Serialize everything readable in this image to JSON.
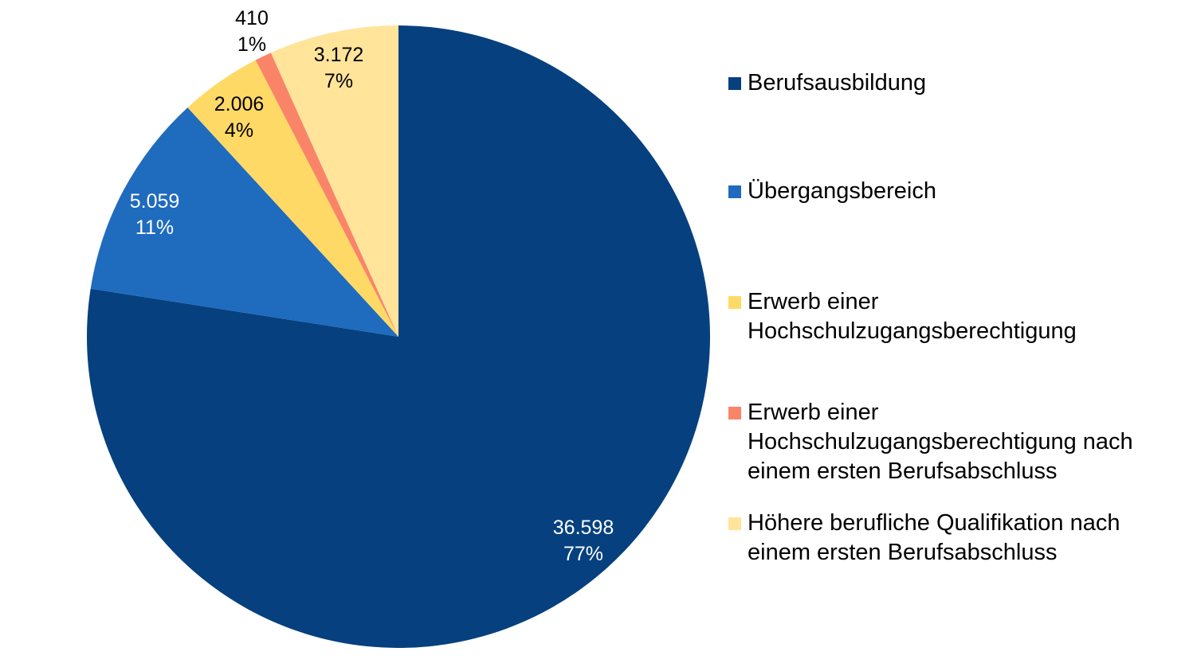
{
  "chart_data": {
    "type": "pie",
    "title": "",
    "start_angle": "top, clockwise",
    "legend_position": "right",
    "slices": [
      {
        "name": "Berufsausbildung",
        "value": 36598,
        "value_label": "36.598",
        "percent_label": "77%",
        "color": "#06407F",
        "label_color": "#FFFFFF"
      },
      {
        "name": "Übergangsbereich",
        "value": 5059,
        "value_label": "5.059",
        "percent_label": "11%",
        "color": "#1F6BBE",
        "label_color": "#FFFFFF"
      },
      {
        "name": "Erwerb einer Hochschulzugangsberechtigung",
        "value": 2006,
        "value_label": "2.006",
        "percent_label": "4%",
        "color": "#FFD966",
        "label_color": "#000000"
      },
      {
        "name": "Erwerb einer Hochschulzugangsberechtigung nach einem ersten Berufsabschluss",
        "value": 410,
        "value_label": "410",
        "percent_label": "1%",
        "color": "#FA8468",
        "label_color": "#000000"
      },
      {
        "name": "Höhere berufliche Qualifikation nach einem ersten Berufsabschluss",
        "value": 3172,
        "value_label": "3.172",
        "percent_label": "7%",
        "color": "#FFE49A",
        "label_color": "#000000"
      }
    ]
  },
  "legend": [
    {
      "text": "Berufsausbildung"
    },
    {
      "text": "Übergangsbereich"
    },
    {
      "text": "Erwerb einer\nHochschulzugangsberechtigung"
    },
    {
      "text": "Erwerb einer\nHochschulzugangsberechtigung nach\neinem ersten Berufsabschluss"
    },
    {
      "text": "Höhere berufliche Qualifikation nach\neinem ersten Berufsabschluss"
    }
  ]
}
